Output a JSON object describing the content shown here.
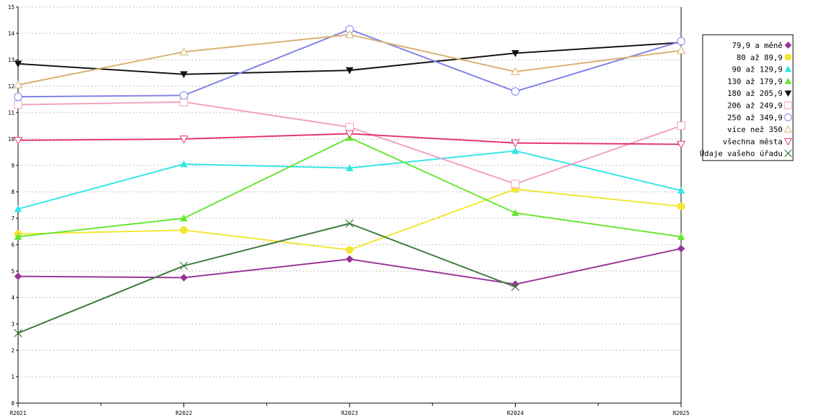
{
  "chart_data": {
    "type": "line",
    "title": "",
    "xlabel": "",
    "ylabel": "",
    "categories": [
      "R2021",
      "R2022",
      "R2023",
      "R2024",
      "R2025"
    ],
    "ylim": [
      0,
      15
    ],
    "yticks": [
      "0",
      "1",
      "2",
      "3",
      "4",
      "5",
      "6",
      "7",
      "8",
      "9",
      "10",
      "11",
      "12",
      "13",
      "14",
      "15"
    ],
    "grid": true,
    "legend_position": "right",
    "series": [
      {
        "name": "79,9 a měně",
        "color": "#993399",
        "marker": "diamond",
        "values": [
          4.8,
          4.75,
          5.45,
          4.5,
          5.85
        ]
      },
      {
        "name": "80 až 89,9",
        "color": "#f2e630",
        "marker": "circle",
        "values": [
          6.4,
          6.55,
          5.8,
          8.1,
          7.45
        ]
      },
      {
        "name": "90 až 129,9",
        "color": "#33e6e6",
        "marker": "triangle",
        "values": [
          7.35,
          9.05,
          8.9,
          9.55,
          8.05
        ]
      },
      {
        "name": "130 až 179,9",
        "color": "#66e633",
        "marker": "triangle",
        "values": [
          6.3,
          7.0,
          10.05,
          7.2,
          6.3
        ]
      },
      {
        "name": "180 až 205,9",
        "color": "#111111",
        "marker": "triangle-down",
        "values": [
          12.85,
          12.45,
          12.6,
          13.25,
          13.65
        ]
      },
      {
        "name": "206 až 249,9",
        "color": "#f2a0c0",
        "marker": "square-open",
        "values": [
          11.3,
          11.4,
          10.45,
          8.3,
          10.5
        ]
      },
      {
        "name": "250 až 349,9",
        "color": "#8080e6",
        "marker": "circle-open",
        "values": [
          11.6,
          11.65,
          14.15,
          11.8,
          13.7
        ]
      },
      {
        "name": "více než 350",
        "color": "#d9b070",
        "marker": "triangle-open",
        "values": [
          12.05,
          13.3,
          13.95,
          12.55,
          13.35
        ]
      },
      {
        "name": "všechna města",
        "color": "#e6336a",
        "marker": "triangle-down-open",
        "values": [
          9.95,
          10.0,
          10.2,
          9.85,
          9.8
        ]
      },
      {
        "name": "Údaje vašeho úřadu",
        "color": "#3d7a3d",
        "marker": "x",
        "values": [
          2.65,
          5.2,
          6.8,
          4.4,
          null
        ]
      }
    ]
  }
}
